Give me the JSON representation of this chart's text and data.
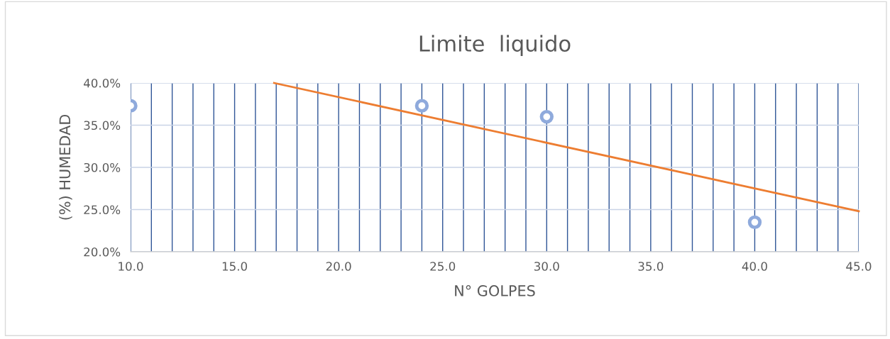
{
  "chart_data": {
    "type": "scatter",
    "title": "Limite  liquido",
    "xlabel": "N° GOLPES",
    "ylabel": "(%) HUMEDAD",
    "series": [
      {
        "color": "#8faadc",
        "marker": "circle",
        "x": [
          10,
          24,
          30,
          40
        ],
        "values": [
          37.3,
          37.3,
          36.0,
          23.5
        ]
      },
      {
        "type": "line",
        "color": "#ed7d31",
        "marker": "none",
        "line_style": "solid",
        "x": [
          16.9,
          45
        ],
        "values": [
          40.0,
          24.8
        ]
      }
    ],
    "xlim": [
      10,
      45
    ],
    "ylim": [
      20,
      40
    ],
    "xticks": [
      {
        "value": 10,
        "label": "10.0"
      },
      {
        "value": 11,
        "label": null
      },
      {
        "value": 12,
        "label": null
      },
      {
        "value": 13,
        "label": null
      },
      {
        "value": 14,
        "label": null
      },
      {
        "value": 15,
        "label": "15.0"
      },
      {
        "value": 16,
        "label": null
      },
      {
        "value": 17,
        "label": null
      },
      {
        "value": 18,
        "label": null
      },
      {
        "value": 19,
        "label": null
      },
      {
        "value": 20,
        "label": "20.0"
      },
      {
        "value": 21,
        "label": null
      },
      {
        "value": 22,
        "label": null
      },
      {
        "value": 23,
        "label": null
      },
      {
        "value": 24,
        "label": null
      },
      {
        "value": 25,
        "label": "25.0"
      },
      {
        "value": 26,
        "label": null
      },
      {
        "value": 27,
        "label": null
      },
      {
        "value": 28,
        "label": null
      },
      {
        "value": 29,
        "label": null
      },
      {
        "value": 30,
        "label": "30.0"
      },
      {
        "value": 31,
        "label": null
      },
      {
        "value": 32,
        "label": null
      },
      {
        "value": 33,
        "label": null
      },
      {
        "value": 34,
        "label": null
      },
      {
        "value": 35,
        "label": "35.0"
      },
      {
        "value": 36,
        "label": null
      },
      {
        "value": 37,
        "label": null
      },
      {
        "value": 38,
        "label": null
      },
      {
        "value": 39,
        "label": null
      },
      {
        "value": 40,
        "label": "40.0"
      },
      {
        "value": 41,
        "label": null
      },
      {
        "value": 42,
        "label": null
      },
      {
        "value": 43,
        "label": null
      },
      {
        "value": 44,
        "label": null
      },
      {
        "value": 45,
        "label": "45.0"
      }
    ],
    "yticks": [
      {
        "value": 20,
        "label": "20.0%"
      },
      {
        "value": 25,
        "label": "25.0%"
      },
      {
        "value": 30,
        "label": "30.0%"
      },
      {
        "value": 35,
        "label": "35.0%"
      },
      {
        "value": 40,
        "label": "40.0%"
      }
    ],
    "grid": true
  }
}
